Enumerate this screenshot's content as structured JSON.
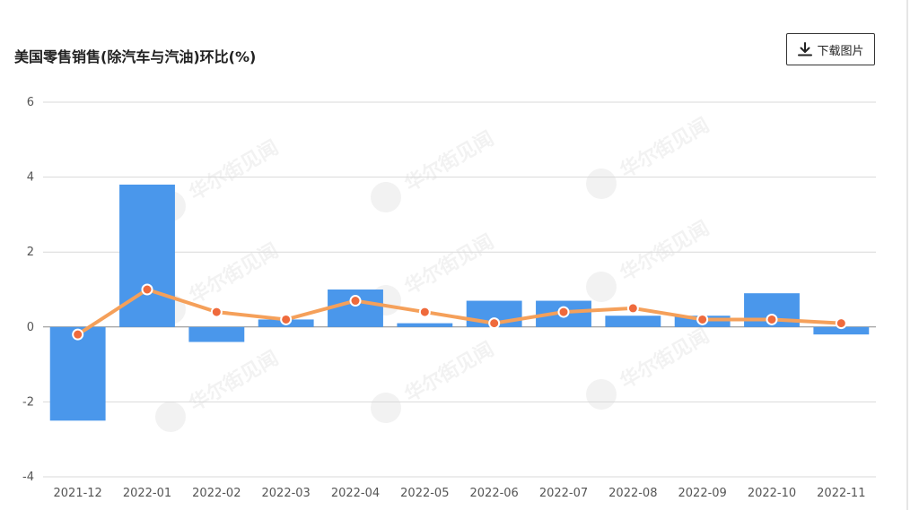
{
  "title": "美国零售销售(除汽车与汽油)环比(%)",
  "download_label": "下载图片",
  "watermark_text": "华尔街见闻",
  "colors": {
    "bar": "#4a97eb",
    "line": "#f5a05a",
    "point_fill": "#ef6a3c",
    "grid": "#d9d9d9",
    "axis_text": "#555555"
  },
  "chart_data": {
    "type": "bar",
    "categories": [
      "2021-12",
      "2022-01",
      "2022-02",
      "2022-03",
      "2022-04",
      "2022-05",
      "2022-06",
      "2022-07",
      "2022-08",
      "2022-09",
      "2022-10",
      "2022-11"
    ],
    "series": [
      {
        "type": "bar",
        "values": [
          -2.5,
          3.8,
          -0.4,
          0.2,
          1.0,
          0.1,
          0.7,
          0.7,
          0.3,
          0.3,
          0.9,
          -0.2
        ]
      },
      {
        "type": "line",
        "values": [
          -0.2,
          1.0,
          0.4,
          0.2,
          0.7,
          0.4,
          0.1,
          0.4,
          0.5,
          0.2,
          0.2,
          0.1
        ]
      }
    ],
    "yticks": [
      6,
      4,
      2,
      0,
      -2,
      -4
    ],
    "ylim": [
      -4,
      6
    ],
    "grid": true,
    "legend": "none"
  }
}
